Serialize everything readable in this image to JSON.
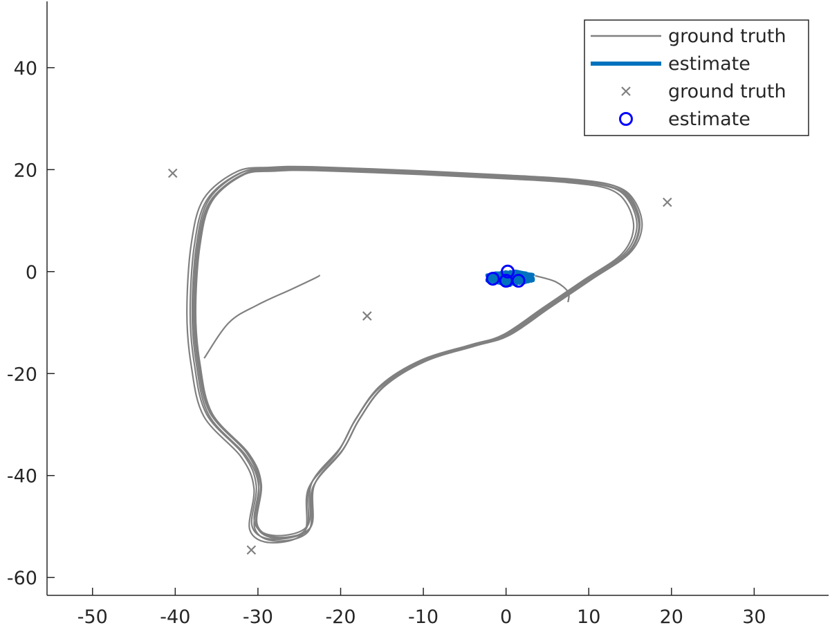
{
  "chart_data": {
    "type": "scatter",
    "title": "",
    "xlabel": "",
    "ylabel": "",
    "xlim": [
      -55.5,
      39
    ],
    "ylim": [
      -63.5,
      53
    ],
    "xticks": [
      -50,
      -40,
      -30,
      -20,
      -10,
      0,
      10,
      20,
      30
    ],
    "yticks": [
      -60,
      -40,
      -20,
      0,
      20,
      40
    ],
    "xtick_labels": [
      "-50",
      "-40",
      "-30",
      "-20",
      "-10",
      "0",
      "10",
      "20",
      "30"
    ],
    "ytick_labels": [
      "-60",
      "-40",
      "-20",
      "0",
      "20",
      "40"
    ],
    "grid": false,
    "legend_position": "top-right",
    "legend": [
      {
        "label": "ground truth",
        "style": "line",
        "color": "#808080"
      },
      {
        "label": "estimate",
        "style": "thick-line",
        "color": "#0072BD"
      },
      {
        "label": "ground truth",
        "style": "x-marker",
        "color": "#808080"
      },
      {
        "label": "estimate",
        "style": "o-marker",
        "color": "#0000FF"
      }
    ],
    "series": [
      {
        "name": "ground truth",
        "kind": "trajectory",
        "color": "#808080",
        "loop": [
          [
            -23,
            20.2
          ],
          [
            -10,
            19.4
          ],
          [
            0,
            18.6
          ],
          [
            8,
            17.8
          ],
          [
            13,
            16.5
          ],
          [
            15.2,
            13.5
          ],
          [
            16,
            8.5
          ],
          [
            14.5,
            3.5
          ],
          [
            10,
            -1.5
          ],
          [
            5,
            -7
          ],
          [
            0,
            -12.5
          ],
          [
            -4,
            -14.5
          ],
          [
            -10,
            -17.5
          ],
          [
            -15,
            -22.5
          ],
          [
            -18,
            -29
          ],
          [
            -20,
            -35
          ],
          [
            -23.5,
            -42
          ],
          [
            -24,
            -50.5
          ],
          [
            -28,
            -52.5
          ],
          [
            -30.5,
            -50
          ],
          [
            -30,
            -42
          ],
          [
            -31.5,
            -36
          ],
          [
            -36,
            -28
          ],
          [
            -37.5,
            -18
          ],
          [
            -38,
            -8
          ],
          [
            -37.5,
            5
          ],
          [
            -36,
            14
          ],
          [
            -32,
            19.3
          ],
          [
            -28,
            20.1
          ]
        ],
        "branch": [
          [
            -22.5,
            -0.7
          ],
          [
            -23,
            -1.2
          ],
          [
            -26,
            -3.5
          ],
          [
            -30,
            -6.5
          ],
          [
            -33.5,
            -10
          ],
          [
            -36.5,
            -17
          ]
        ],
        "spur": [
          [
            3.5,
            -0.8
          ],
          [
            6,
            -2
          ],
          [
            7.5,
            -4
          ],
          [
            7.5,
            -6
          ]
        ]
      },
      {
        "name": "estimate",
        "kind": "cluster",
        "color": "#0072BD",
        "center": [
          0.5,
          -1.2
        ],
        "spread": [
          2.8,
          1.6
        ]
      },
      {
        "name": "ground truth",
        "kind": "landmarks",
        "color": "#808080",
        "points": [
          [
            -40.3,
            19.3
          ],
          [
            19.5,
            13.6
          ],
          [
            -16.8,
            -8.7
          ],
          [
            -30.8,
            -54.6
          ]
        ]
      },
      {
        "name": "estimate",
        "kind": "landmarks",
        "color": "#0000FF",
        "points": [
          [
            0.2,
            0
          ],
          [
            -1.6,
            -1.4
          ],
          [
            0,
            -1.8
          ],
          [
            1.5,
            -1.8
          ]
        ]
      }
    ]
  }
}
